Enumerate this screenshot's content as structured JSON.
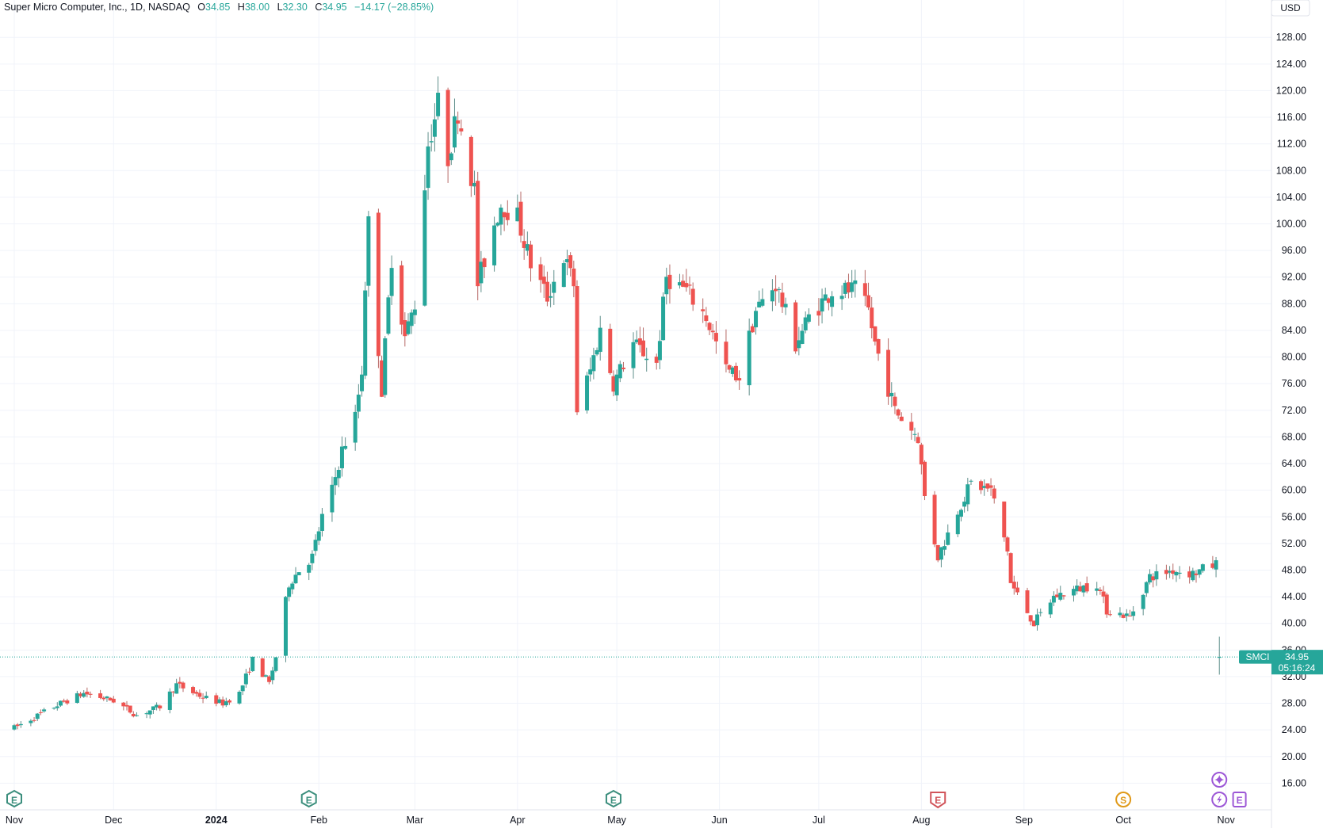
{
  "header": {
    "title": "Super Micro Computer, Inc., 1D, NASDAQ",
    "open_label": "O",
    "open": "34.85",
    "high_label": "H",
    "high": "38.00",
    "low_label": "L",
    "low": "32.30",
    "close_label": "C",
    "close": "34.95",
    "change": "−14.17 (−28.85%)"
  },
  "currency_button": "USD",
  "price_tag": {
    "symbol": "SMCI",
    "price": "34.95",
    "countdown": "05:16:24"
  },
  "colors": {
    "up": "#26a69a",
    "down": "#ef5350",
    "up_wick": "#5f8f8b",
    "down_wick": "#b76a67",
    "grid": "#f0f3fa",
    "axis_text": "#131722",
    "earnings_green": "#3b8e7d",
    "earnings_red": "#d1545a",
    "split_orange": "#e09a1a",
    "event_purple": "#9c57d6"
  },
  "events": [
    {
      "type": "earnings",
      "icon": "earnings-icon",
      "label": "E",
      "date": "2023-11-01",
      "color": "green"
    },
    {
      "type": "earnings",
      "icon": "earnings-icon",
      "label": "E",
      "date": "2024-01-29",
      "color": "green"
    },
    {
      "type": "earnings",
      "icon": "earnings-icon",
      "label": "E",
      "date": "2024-04-30",
      "color": "green"
    },
    {
      "type": "earnings",
      "icon": "earnings-icon",
      "label": "E",
      "date": "2024-08-06",
      "color": "red"
    },
    {
      "type": "split",
      "icon": "split-icon",
      "label": "S",
      "date": "2024-10-01",
      "color": "orange"
    },
    {
      "type": "news",
      "icon": "lightning-icon",
      "label": "",
      "date": "2024-10-30",
      "color": "purple"
    },
    {
      "type": "earnings",
      "icon": "earnings-icon",
      "label": "E",
      "date": "2024-11-01",
      "color": "purple"
    },
    {
      "type": "news",
      "icon": "sparkle-icon",
      "label": "",
      "date": "2024-10-30",
      "color": "purple"
    }
  ],
  "chart_data": {
    "type": "candlestick",
    "title": "Super Micro Computer, Inc., 1D, NASDAQ",
    "xlabel": "",
    "ylabel": "",
    "currency": "USD",
    "x_range": [
      "2023-11-01",
      "2024-11-09"
    ],
    "y_range": [
      12,
      131
    ],
    "x_ticks": [
      {
        "date": "2023-11-01",
        "label": "Nov"
      },
      {
        "date": "2023-12-01",
        "label": "Dec"
      },
      {
        "date": "2024-01-01",
        "label": "2024",
        "bold": true
      },
      {
        "date": "2024-02-01",
        "label": "Feb"
      },
      {
        "date": "2024-03-01",
        "label": "Mar"
      },
      {
        "date": "2024-04-01",
        "label": "Apr"
      },
      {
        "date": "2024-05-01",
        "label": "May"
      },
      {
        "date": "2024-06-01",
        "label": "Jun"
      },
      {
        "date": "2024-07-01",
        "label": "Jul"
      },
      {
        "date": "2024-08-01",
        "label": "Aug"
      },
      {
        "date": "2024-09-01",
        "label": "Sep"
      },
      {
        "date": "2024-10-01",
        "label": "Oct"
      },
      {
        "date": "2024-11-01",
        "label": "Nov"
      }
    ],
    "y_ticks": [
      "16.00",
      "20.00",
      "24.00",
      "28.00",
      "32.00",
      "36.00",
      "40.00",
      "44.00",
      "48.00",
      "52.00",
      "56.00",
      "60.00",
      "64.00",
      "68.00",
      "72.00",
      "76.00",
      "80.00",
      "84.00",
      "88.00",
      "92.00",
      "96.00",
      "100.00",
      "104.00",
      "108.00",
      "112.00",
      "116.00",
      "120.00",
      "124.00",
      "128.00"
    ],
    "last_price": 34.95,
    "grid": true,
    "legend": "none",
    "anchors": [
      [
        "2023-11-01",
        24.3
      ],
      [
        "2023-11-15",
        28.0
      ],
      [
        "2023-11-22",
        29.5
      ],
      [
        "2023-12-01",
        28.4
      ],
      [
        "2023-12-08",
        26.2
      ],
      [
        "2023-12-15",
        27.5
      ],
      [
        "2023-12-20",
        30.8
      ],
      [
        "2023-12-28",
        28.9
      ],
      [
        "2024-01-03",
        28.0
      ],
      [
        "2024-01-08",
        29.5
      ],
      [
        "2024-01-12",
        34.5
      ],
      [
        "2024-01-17",
        31.0
      ],
      [
        "2024-01-19",
        35.0
      ],
      [
        "2024-01-23",
        46.0
      ],
      [
        "2024-01-26",
        48.0
      ],
      [
        "2024-01-30",
        50.0
      ],
      [
        "2024-02-02",
        56.0
      ],
      [
        "2024-02-05",
        60.0
      ],
      [
        "2024-02-08",
        66.0
      ],
      [
        "2024-02-12",
        71.0
      ],
      [
        "2024-02-14",
        78.0
      ],
      [
        "2024-02-15",
        91.0
      ],
      [
        "2024-02-16",
        100.0
      ],
      [
        "2024-02-20",
        75.0
      ],
      [
        "2024-02-23",
        95.0
      ],
      [
        "2024-02-27",
        83.0
      ],
      [
        "2024-03-01",
        88.0
      ],
      [
        "2024-03-05",
        112.0
      ],
      [
        "2024-03-08",
        118.0
      ],
      [
        "2024-03-11",
        110.0
      ],
      [
        "2024-03-14",
        117.0
      ],
      [
        "2024-03-19",
        105.0
      ],
      [
        "2024-03-20",
        91.0
      ],
      [
        "2024-03-25",
        100.0
      ],
      [
        "2024-03-27",
        103.0
      ],
      [
        "2024-04-01",
        101.0
      ],
      [
        "2024-04-05",
        94.0
      ],
      [
        "2024-04-10",
        89.0
      ],
      [
        "2024-04-15",
        95.0
      ],
      [
        "2024-04-18",
        91.0
      ],
      [
        "2024-04-19",
        72.0
      ],
      [
        "2024-04-23",
        78.0
      ],
      [
        "2024-04-26",
        84.0
      ],
      [
        "2024-04-30",
        76.0
      ],
      [
        "2024-05-06",
        82.0
      ],
      [
        "2024-05-13",
        79.0
      ],
      [
        "2024-05-16",
        92.0
      ],
      [
        "2024-05-22",
        90.0
      ],
      [
        "2024-05-28",
        86.0
      ],
      [
        "2024-06-03",
        78.0
      ],
      [
        "2024-06-07",
        77.0
      ],
      [
        "2024-06-12",
        87.0
      ],
      [
        "2024-06-18",
        91.0
      ],
      [
        "2024-06-24",
        82.0
      ],
      [
        "2024-06-28",
        86.0
      ],
      [
        "2024-07-05",
        90.0
      ],
      [
        "2024-07-12",
        90.0
      ],
      [
        "2024-07-16",
        87.0
      ],
      [
        "2024-07-18",
        82.0
      ],
      [
        "2024-07-24",
        72.0
      ],
      [
        "2024-07-31",
        68.0
      ],
      [
        "2024-08-02",
        59.0
      ],
      [
        "2024-08-06",
        50.0
      ],
      [
        "2024-08-12",
        57.0
      ],
      [
        "2024-08-16",
        61.0
      ],
      [
        "2024-08-22",
        60.0
      ],
      [
        "2024-08-27",
        51.0
      ],
      [
        "2024-08-28",
        46.0
      ],
      [
        "2024-09-04",
        40.0
      ],
      [
        "2024-09-10",
        44.0
      ],
      [
        "2024-09-16",
        45.0
      ],
      [
        "2024-09-23",
        46.0
      ],
      [
        "2024-09-26",
        42.0
      ],
      [
        "2024-10-03",
        41.0
      ],
      [
        "2024-10-09",
        47.0
      ],
      [
        "2024-10-16",
        48.0
      ],
      [
        "2024-10-22",
        47.5
      ],
      [
        "2024-10-29",
        48.9
      ],
      [
        "2024-10-30",
        34.95
      ]
    ]
  }
}
